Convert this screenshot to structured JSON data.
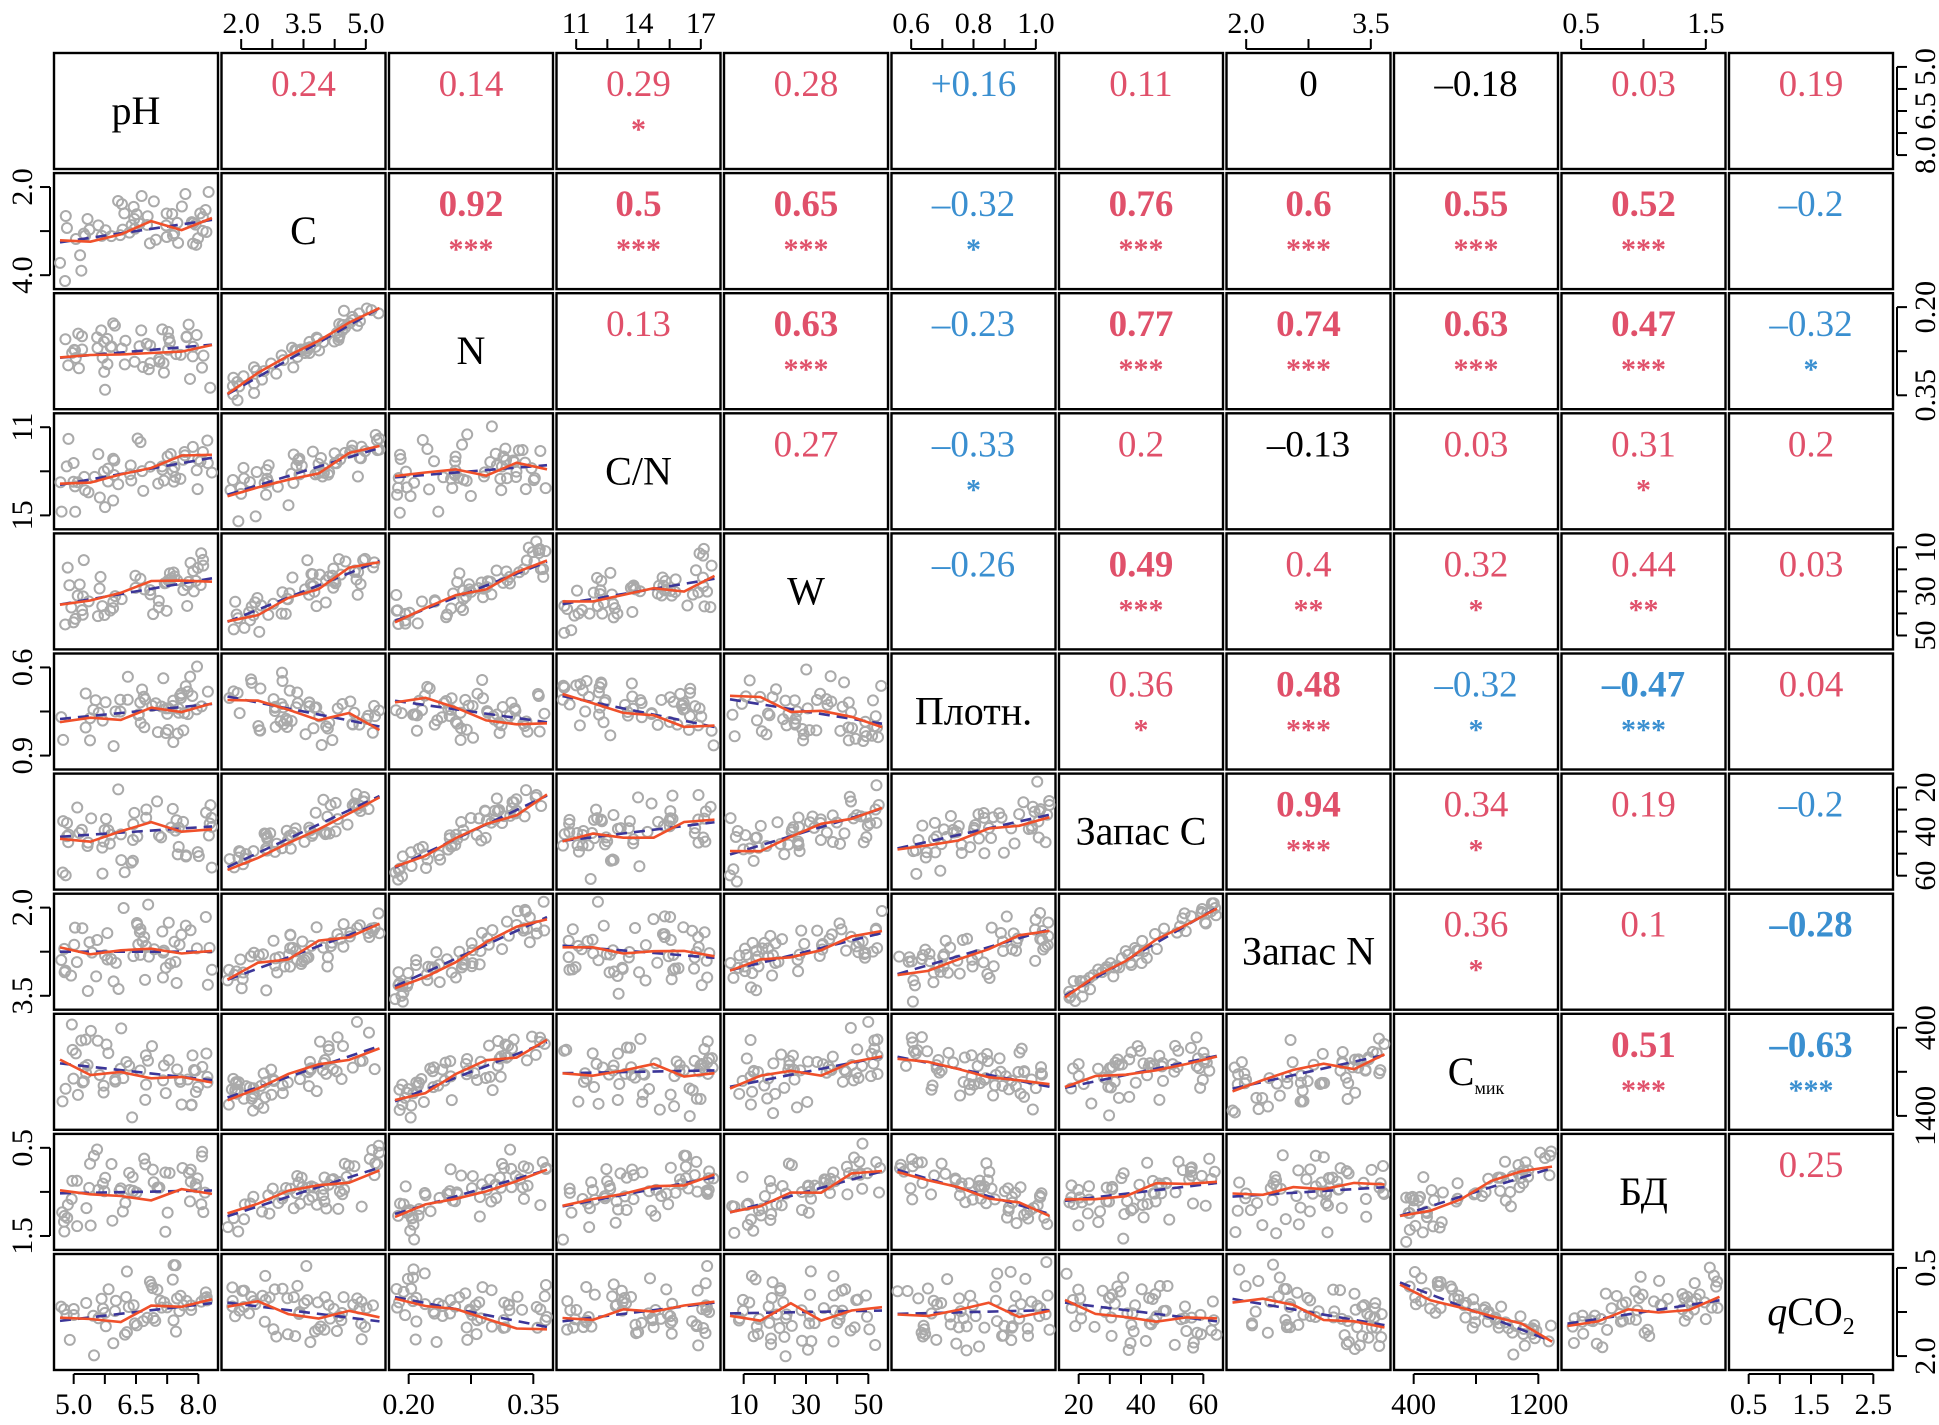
{
  "chart_data": {
    "type": "scatter-matrix",
    "variables": [
      {
        "label": "pH"
      },
      {
        "label": "C"
      },
      {
        "label": "N"
      },
      {
        "label": "C/N"
      },
      {
        "label": "W"
      },
      {
        "label": "Плотн."
      },
      {
        "label": "Запас C"
      },
      {
        "label": "Запас N"
      },
      {
        "label": "C",
        "sub": "мик"
      },
      {
        "label": "БД"
      },
      {
        "label": "CO",
        "prefix": "q",
        "sub": "2"
      }
    ],
    "ticks": [
      [
        "5.0",
        "6.5",
        "8.0"
      ],
      [
        "2.0",
        "3.5",
        "5.0"
      ],
      [
        "0.20",
        "0.35"
      ],
      [
        "11",
        "14",
        "17"
      ],
      [
        "10",
        "30",
        "50"
      ],
      [
        "0.6",
        "0.8",
        "1.0"
      ],
      [
        "20",
        "40",
        "60"
      ],
      [
        "2.0",
        "3.5"
      ],
      [
        "400",
        "1200"
      ],
      [
        "0.5",
        "1.5"
      ],
      [
        "0.5",
        "1.5",
        "2.5"
      ]
    ],
    "y_ticks": [
      [
        "5.0",
        "6.5",
        "8.0"
      ],
      [
        "2.0",
        "4.0"
      ],
      [
        "0.20",
        "0.35"
      ],
      [
        "11",
        "15"
      ],
      [
        "10",
        "30",
        "50"
      ],
      [
        "0.6",
        "0.9"
      ],
      [
        "20",
        "40",
        "60"
      ],
      [
        "2.0",
        "3.5"
      ],
      [
        "400",
        "1400"
      ],
      [
        "0.5",
        "1.5"
      ],
      [
        "0.5",
        "2.0"
      ]
    ],
    "correlations": [
      {
        "row": 0,
        "col": 1,
        "r": "0.24",
        "sig": "",
        "bold": false,
        "color": "#e0506a"
      },
      {
        "row": 0,
        "col": 2,
        "r": "0.14",
        "sig": "",
        "bold": false,
        "color": "#e0506a"
      },
      {
        "row": 0,
        "col": 3,
        "r": "0.29",
        "sig": "*",
        "bold": false,
        "color": "#e0506a"
      },
      {
        "row": 0,
        "col": 4,
        "r": "0.28",
        "sig": "",
        "bold": false,
        "color": "#e0506a"
      },
      {
        "row": 0,
        "col": 5,
        "r": "+0.16",
        "sig": "",
        "bold": false,
        "color": "#3a8fd0"
      },
      {
        "row": 0,
        "col": 6,
        "r": "0.11",
        "sig": "",
        "bold": false,
        "color": "#e0506a"
      },
      {
        "row": 0,
        "col": 7,
        "r": "0",
        "sig": "",
        "bold": false,
        "color": "#000000"
      },
      {
        "row": 0,
        "col": 8,
        "r": "–0.18",
        "sig": "",
        "bold": false,
        "color": "#000000"
      },
      {
        "row": 0,
        "col": 9,
        "r": "0.03",
        "sig": "",
        "bold": false,
        "color": "#e0506a"
      },
      {
        "row": 0,
        "col": 10,
        "r": "0.19",
        "sig": "",
        "bold": false,
        "color": "#e0506a"
      },
      {
        "row": 1,
        "col": 2,
        "r": "0.92",
        "sig": "***",
        "bold": true,
        "color": "#e0506a"
      },
      {
        "row": 1,
        "col": 3,
        "r": "0.5",
        "sig": "***",
        "bold": true,
        "color": "#e0506a"
      },
      {
        "row": 1,
        "col": 4,
        "r": "0.65",
        "sig": "***",
        "bold": true,
        "color": "#e0506a"
      },
      {
        "row": 1,
        "col": 5,
        "r": "–0.32",
        "sig": "*",
        "bold": false,
        "color": "#3a8fd0"
      },
      {
        "row": 1,
        "col": 6,
        "r": "0.76",
        "sig": "***",
        "bold": true,
        "color": "#e0506a"
      },
      {
        "row": 1,
        "col": 7,
        "r": "0.6",
        "sig": "***",
        "bold": true,
        "color": "#e0506a"
      },
      {
        "row": 1,
        "col": 8,
        "r": "0.55",
        "sig": "***",
        "bold": true,
        "color": "#e0506a"
      },
      {
        "row": 1,
        "col": 9,
        "r": "0.52",
        "sig": "***",
        "bold": true,
        "color": "#e0506a"
      },
      {
        "row": 1,
        "col": 10,
        "r": "–0.2",
        "sig": "",
        "bold": false,
        "color": "#3a8fd0"
      },
      {
        "row": 2,
        "col": 3,
        "r": "0.13",
        "sig": "",
        "bold": false,
        "color": "#e0506a"
      },
      {
        "row": 2,
        "col": 4,
        "r": "0.63",
        "sig": "***",
        "bold": true,
        "color": "#e0506a"
      },
      {
        "row": 2,
        "col": 5,
        "r": "–0.23",
        "sig": "",
        "bold": false,
        "color": "#3a8fd0"
      },
      {
        "row": 2,
        "col": 6,
        "r": "0.77",
        "sig": "***",
        "bold": true,
        "color": "#e0506a"
      },
      {
        "row": 2,
        "col": 7,
        "r": "0.74",
        "sig": "***",
        "bold": true,
        "color": "#e0506a"
      },
      {
        "row": 2,
        "col": 8,
        "r": "0.63",
        "sig": "***",
        "bold": true,
        "color": "#e0506a"
      },
      {
        "row": 2,
        "col": 9,
        "r": "0.47",
        "sig": "***",
        "bold": true,
        "color": "#e0506a"
      },
      {
        "row": 2,
        "col": 10,
        "r": "–0.32",
        "sig": "*",
        "bold": false,
        "color": "#3a8fd0"
      },
      {
        "row": 3,
        "col": 4,
        "r": "0.27",
        "sig": "",
        "bold": false,
        "color": "#e0506a"
      },
      {
        "row": 3,
        "col": 5,
        "r": "–0.33",
        "sig": "*",
        "bold": false,
        "color": "#3a8fd0"
      },
      {
        "row": 3,
        "col": 6,
        "r": "0.2",
        "sig": "",
        "bold": false,
        "color": "#e0506a"
      },
      {
        "row": 3,
        "col": 7,
        "r": "–0.13",
        "sig": "",
        "bold": false,
        "color": "#000000"
      },
      {
        "row": 3,
        "col": 8,
        "r": "0.03",
        "sig": "",
        "bold": false,
        "color": "#e0506a"
      },
      {
        "row": 3,
        "col": 9,
        "r": "0.31",
        "sig": "*",
        "bold": false,
        "color": "#e0506a"
      },
      {
        "row": 3,
        "col": 10,
        "r": "0.2",
        "sig": "",
        "bold": false,
        "color": "#e0506a"
      },
      {
        "row": 4,
        "col": 5,
        "r": "–0.26",
        "sig": "",
        "bold": false,
        "color": "#3a8fd0"
      },
      {
        "row": 4,
        "col": 6,
        "r": "0.49",
        "sig": "***",
        "bold": true,
        "color": "#e0506a"
      },
      {
        "row": 4,
        "col": 7,
        "r": "0.4",
        "sig": "**",
        "bold": false,
        "color": "#e0506a"
      },
      {
        "row": 4,
        "col": 8,
        "r": "0.32",
        "sig": "*",
        "bold": false,
        "color": "#e0506a"
      },
      {
        "row": 4,
        "col": 9,
        "r": "0.44",
        "sig": "**",
        "bold": false,
        "color": "#e0506a"
      },
      {
        "row": 4,
        "col": 10,
        "r": "0.03",
        "sig": "",
        "bold": false,
        "color": "#e0506a"
      },
      {
        "row": 5,
        "col": 6,
        "r": "0.36",
        "sig": "*",
        "bold": false,
        "color": "#e0506a"
      },
      {
        "row": 5,
        "col": 7,
        "r": "0.48",
        "sig": "***",
        "bold": true,
        "color": "#e0506a"
      },
      {
        "row": 5,
        "col": 8,
        "r": "–0.32",
        "sig": "*",
        "bold": false,
        "color": "#3a8fd0"
      },
      {
        "row": 5,
        "col": 9,
        "r": "–0.47",
        "sig": "***",
        "bold": true,
        "color": "#3a8fd0"
      },
      {
        "row": 5,
        "col": 10,
        "r": "0.04",
        "sig": "",
        "bold": false,
        "color": "#e0506a"
      },
      {
        "row": 6,
        "col": 7,
        "r": "0.94",
        "sig": "***",
        "bold": true,
        "color": "#e0506a"
      },
      {
        "row": 6,
        "col": 8,
        "r": "0.34",
        "sig": "*",
        "bold": false,
        "color": "#e0506a"
      },
      {
        "row": 6,
        "col": 9,
        "r": "0.19",
        "sig": "",
        "bold": false,
        "color": "#e0506a"
      },
      {
        "row": 6,
        "col": 10,
        "r": "–0.2",
        "sig": "",
        "bold": false,
        "color": "#3a8fd0"
      },
      {
        "row": 7,
        "col": 8,
        "r": "0.36",
        "sig": "*",
        "bold": false,
        "color": "#e0506a"
      },
      {
        "row": 7,
        "col": 9,
        "r": "0.1",
        "sig": "",
        "bold": false,
        "color": "#e0506a"
      },
      {
        "row": 7,
        "col": 10,
        "r": "–0.28",
        "sig": "",
        "bold": true,
        "color": "#3a8fd0"
      },
      {
        "row": 8,
        "col": 9,
        "r": "0.51",
        "sig": "***",
        "bold": true,
        "color": "#e0506a"
      },
      {
        "row": 8,
        "col": 10,
        "r": "–0.63",
        "sig": "***",
        "bold": true,
        "color": "#3a8fd0"
      },
      {
        "row": 9,
        "col": 10,
        "r": "0.25",
        "sig": "",
        "bold": false,
        "color": "#e0506a"
      }
    ],
    "colors": {
      "points": "#aaaaaa",
      "loess": "#f0502a",
      "linear_fit": "#3b3598",
      "positive": "#e0506a",
      "negative": "#3a8fd0",
      "neutral": "#000000"
    }
  }
}
